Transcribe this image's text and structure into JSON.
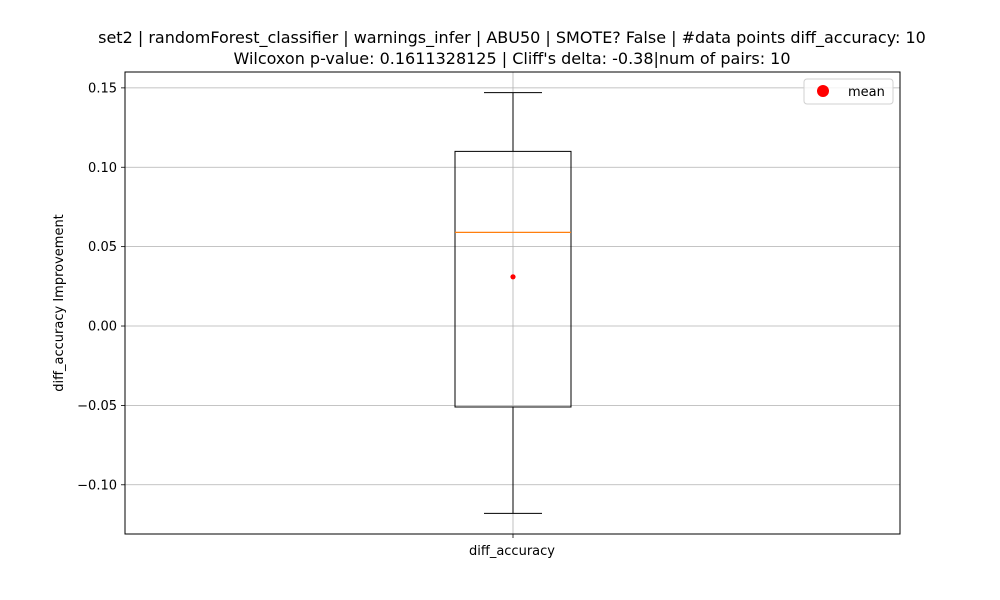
{
  "chart_data": {
    "type": "box",
    "title_line1": "set2 | randomForest_classifier | warnings_infer | ABU50 | SMOTE? False | #data points diff_accuracy: 10",
    "title_line2": "Wilcoxon p-value: 0.1611328125 | Cliff's delta: -0.38|num of pairs: 10",
    "ylabel": "diff_accuracy Improvement",
    "categories": [
      "diff_accuracy"
    ],
    "ylim": [
      -0.131,
      0.16
    ],
    "yticks": [
      -0.1,
      -0.05,
      0.0,
      0.05,
      0.1,
      0.15
    ],
    "ytick_labels": [
      "−0.10",
      "−0.05",
      "0.00",
      "0.05",
      "0.10",
      "0.15"
    ],
    "grid": true,
    "legend": {
      "placement": "top-right",
      "entries": [
        "mean"
      ]
    },
    "box": {
      "whisker_low": -0.118,
      "q1": -0.051,
      "median": 0.059,
      "q3": 0.11,
      "whisker_high": 0.147,
      "mean": 0.031
    },
    "colors": {
      "box": "#000000",
      "median": "#ff7f0e",
      "mean": "#ff0000",
      "grid": "#b0b0b0"
    }
  }
}
